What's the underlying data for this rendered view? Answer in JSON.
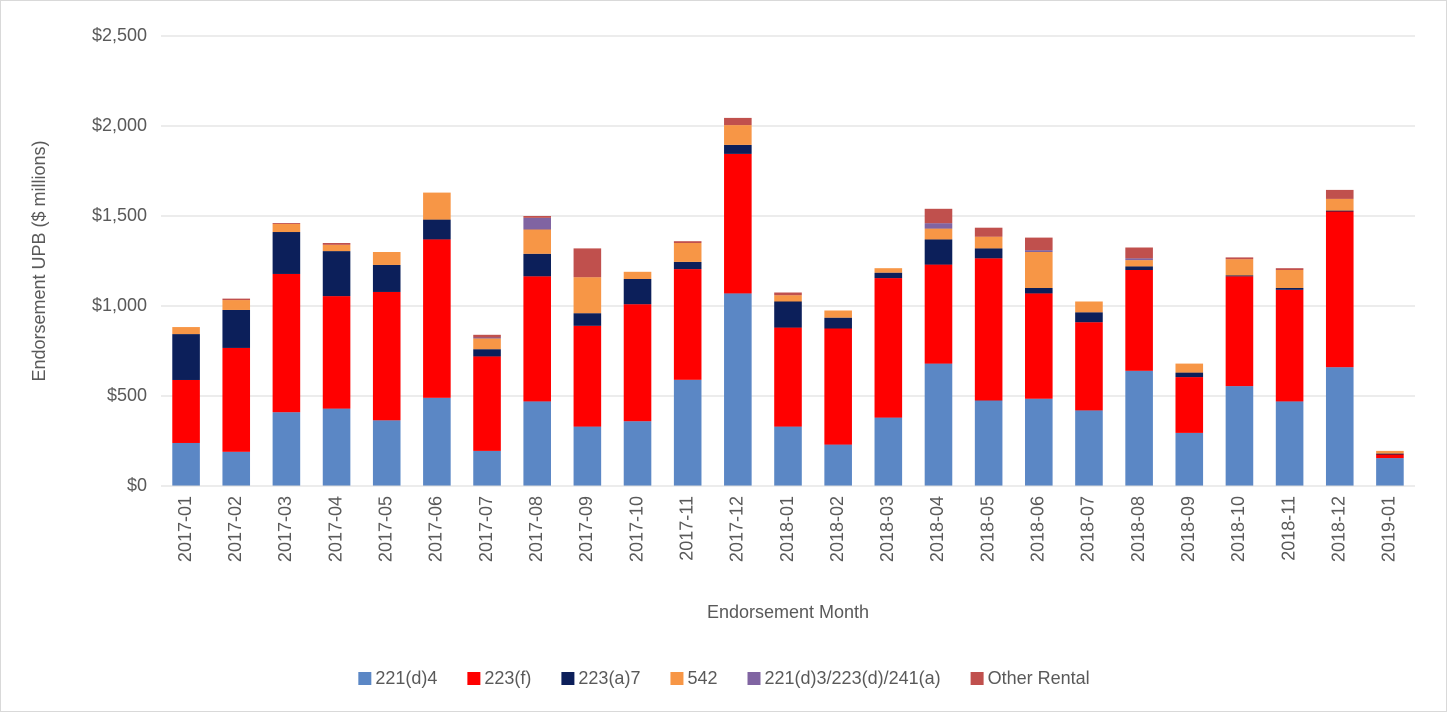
{
  "chart_data": {
    "type": "stacked_bar",
    "y_label": "Endorsement UPB ($ millions)",
    "x_label": "Endorsement Month",
    "categories": [
      "2017-01",
      "2017-02",
      "2017-03",
      "2017-04",
      "2017-05",
      "2017-06",
      "2017-07",
      "2017-08",
      "2017-09",
      "2017-10",
      "2017-11",
      "2017-12",
      "2018-01",
      "2018-02",
      "2018-03",
      "2018-04",
      "2018-05",
      "2018-06",
      "2018-07",
      "2018-08",
      "2018-09",
      "2018-10",
      "2018-11",
      "2018-12",
      "2019-01"
    ],
    "series": [
      {
        "name": "221(d)4",
        "color": "#5b87c5",
        "values": [
          239,
          190,
          410,
          430,
          365,
          490,
          195,
          470,
          330,
          360,
          590,
          1070,
          330,
          230,
          380,
          680,
          475,
          485,
          420,
          640,
          295,
          555,
          470,
          660,
          155
        ]
      },
      {
        "name": "223(f)",
        "color": "#ff0000",
        "values": [
          350,
          577,
          768,
          625,
          713,
          880,
          525,
          695,
          560,
          650,
          615,
          775,
          550,
          645,
          775,
          550,
          790,
          585,
          490,
          560,
          310,
          610,
          620,
          865,
          20
        ]
      },
      {
        "name": "223(a)7",
        "color": "#0c1f5a",
        "values": [
          255,
          211,
          233,
          250,
          150,
          110,
          40,
          125,
          70,
          140,
          40,
          50,
          145,
          60,
          30,
          140,
          55,
          30,
          55,
          20,
          25,
          5,
          10,
          5,
          5
        ]
      },
      {
        "name": "542",
        "color": "#f79646",
        "values": [
          39,
          55,
          45,
          35,
          72,
          150,
          60,
          135,
          200,
          40,
          105,
          110,
          35,
          40,
          25,
          60,
          65,
          200,
          60,
          35,
          50,
          90,
          100,
          65,
          15
        ]
      },
      {
        "name": "221(d)3/223(d)/241(a)",
        "color": "#8064a2",
        "values": [
          0,
          0,
          0,
          0,
          0,
          0,
          5,
          65,
          0,
          0,
          0,
          0,
          0,
          0,
          0,
          30,
          0,
          10,
          0,
          10,
          0,
          0,
          0,
          0,
          0
        ]
      },
      {
        "name": "Other Rental",
        "color": "#c0504d",
        "values": [
          0,
          8,
          5,
          10,
          0,
          0,
          15,
          10,
          160,
          0,
          10,
          40,
          15,
          0,
          0,
          80,
          50,
          70,
          0,
          60,
          0,
          10,
          10,
          50,
          0
        ]
      }
    ],
    "ylim": [
      0,
      2500
    ],
    "yticks": [
      {
        "value": 0,
        "label": "$0"
      },
      {
        "value": 500,
        "label": "$500"
      },
      {
        "value": 1000,
        "label": "$1,000"
      },
      {
        "value": 1500,
        "label": "$1,500"
      },
      {
        "value": 2000,
        "label": "$2,000"
      },
      {
        "value": 2500,
        "label": "$2,500"
      }
    ],
    "grid": true,
    "legend": "bottom"
  }
}
